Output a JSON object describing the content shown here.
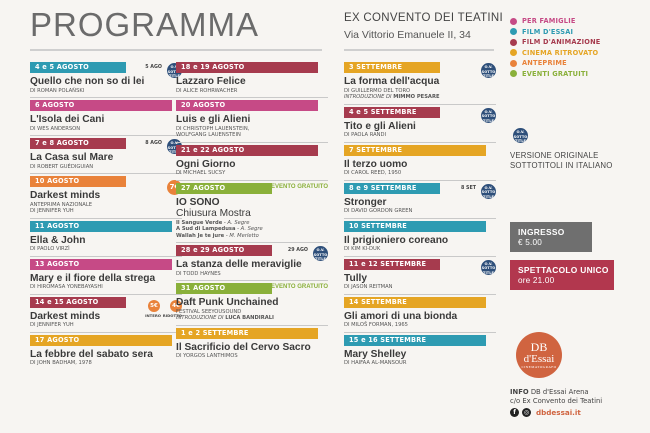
{
  "header": {
    "title": "PROGRAMMA",
    "venue_name": "EX CONVENTO DEI TEATINI",
    "venue_address": "Via Vittorio Emanuele II, 34"
  },
  "legend": [
    {
      "label": "PER FAMIGLIE",
      "color": "#c64a86"
    },
    {
      "label": "FILM D'ESSAI",
      "color": "#2e9bb2"
    },
    {
      "label": "FILM D'ANIMAZIONE",
      "color": "#a63b4e"
    },
    {
      "label": "CINEMA RITROVATO",
      "color": "#e5a524"
    },
    {
      "label": "ANTEPRIME",
      "color": "#e9823a"
    },
    {
      "label": "EVENTI GRATUITI",
      "color": "#8ab03a"
    }
  ],
  "badge": {
    "line1": "O.V.",
    "line2": "SOTTO",
    "line3": "TITLE"
  },
  "col1": [
    {
      "date": "4 e 5 AGOSTO",
      "color": "#2e9bb2",
      "title": "Quello che non so di lei",
      "sub": "DI ROMAN POLAŃSKI",
      "extra": "5 AGO",
      "vo": true
    },
    {
      "date": "6 AGOSTO",
      "color": "#c64a86",
      "title": "L'Isola dei Cani",
      "sub": "DI WES ANDERSON"
    },
    {
      "date": "7 e 8 AGOSTO",
      "color": "#a63b4e",
      "title": "La Casa sul Mare",
      "sub": "DI ROBERT GUÉDIGUIAN",
      "extra": "8 AGO",
      "vo": true
    },
    {
      "date": "10 AGOSTO",
      "color": "#e9823a",
      "title": "Darkest minds",
      "sub": "ANTEPRIMA NAZIONALE",
      "sub2": "DI JENNIFER YUH",
      "price": "7€"
    },
    {
      "date": "11 AGOSTO",
      "color": "#2e9bb2",
      "title": "Ella & John",
      "sub": "DI PAOLO VIRZÌ"
    },
    {
      "date": "13 AGOSTO",
      "color": "#c64a86",
      "title": "Mary e il fiore della strega",
      "sub": "DI HIROMASA YONEBAYASHI"
    },
    {
      "date": "14 e 15 AGOSTO",
      "color": "#a63b4e",
      "title": "Darkest minds",
      "sub": "DI JENNIFER YUH",
      "price1": "5€",
      "price2": "4€",
      "intero": "INTERO",
      "ridotto": "RIDOTTO"
    },
    {
      "date": "17 AGOSTO",
      "color": "#e5a524",
      "title": "La febbre del sabato sera",
      "sub": "DI JOHN BADHAM, 1978"
    }
  ],
  "col2": [
    {
      "date": "18 e 19 AGOSTO",
      "color": "#a63b4e",
      "title": "Lazzaro Felice",
      "sub": "DI ALICE ROHRWACHER"
    },
    {
      "date": "20 AGOSTO",
      "color": "#c64a86",
      "title": "Luis e gli Alieni",
      "sub": "DI CHRISTOPH LAUENSTEIN,",
      "sub2": "WOLFGANG LAUENSTEIN"
    },
    {
      "date": "21 e 22 AGOSTO",
      "color": "#a63b4e",
      "title": "Ogni Giorno",
      "sub": "DI MICHAEL SUCSY"
    },
    {
      "date": "27 AGOSTO",
      "color": "#8ab03a",
      "title": "IO SONO",
      "title2": "Chiusura Mostra",
      "grat": "EVENTO GRATUITO",
      "shorts": [
        {
          "t": "Il Sangue Verde",
          "a": "- A. Segre"
        },
        {
          "t": "A Sud di Lampedusa",
          "a": "- A. Segre"
        },
        {
          "t": "Wallah Je te jure",
          "a": "- M. Merletto"
        }
      ]
    },
    {
      "date": "28 e 29 AGOSTO",
      "color": "#a63b4e",
      "title": "La stanza delle meraviglie",
      "sub": "DI TODD HAYNES",
      "extra": "29 AGO",
      "vo": true
    },
    {
      "date": "31 AGOSTO",
      "color": "#8ab03a",
      "title": "Daft Punk Unchained",
      "sub": "FESTIVAL SEEYOUSOUND",
      "note": "INTRODUZIONE DI",
      "note_b": "LUCA BANDIRALI",
      "grat": "EVENTO GRATUITO"
    },
    {
      "date": "1 e 2 SETTEMBRE",
      "color": "#e5a524",
      "title": "Il Sacrificio del Cervo Sacro",
      "sub": "DI YORGOS LANTHIMOS"
    }
  ],
  "col3": [
    {
      "date": "3 SETTEMBRE",
      "color": "#e5a524",
      "title": "La forma dell'acqua",
      "sub": "DI GUILLERMO DEL TORO",
      "note": "INTRODUZIONE DI",
      "note_b": "MIMMO PESARE",
      "vo": true
    },
    {
      "date": "4 e 5 SETTEMBRE",
      "color": "#a63b4e",
      "title": "Tito e gli Alieni",
      "sub": "DI PAOLA RANDI",
      "vo": true
    },
    {
      "date": "7 SETTEMBRE",
      "color": "#e5a524",
      "title": "Il terzo uomo",
      "sub": "DI CAROL REED, 1950"
    },
    {
      "date": "8 e 9 SETTEMBRE",
      "color": "#2e9bb2",
      "title": "Stronger",
      "sub": "DI DAVID GORDON GREEN",
      "extra": "8 SET",
      "vo": true
    },
    {
      "date": "10 SETTEMBRE",
      "color": "#2e9bb2",
      "title": "Il prigioniero coreano",
      "sub": "DI KIM KI-DUK"
    },
    {
      "date": "11 e 12 SETTEMBRE",
      "color": "#a63b4e",
      "title": "Tully",
      "sub": "DI JASON REITMAN",
      "vo": true
    },
    {
      "date": "14 SETTEMBRE",
      "color": "#e5a524",
      "title": "Gli amori di una bionda",
      "sub": "DI MILOŠ FORMAN, 1965"
    },
    {
      "date": "15 e 16 SETTEMBRE",
      "color": "#2e9bb2",
      "title": "Mary Shelley",
      "sub": "DI HAIFAA AL-MANSOUR"
    }
  ],
  "side": {
    "vo_line1": "VERSIONE ORIGINALE",
    "vo_line2": "SOTTOTITOLI IN ITALIANO",
    "ingresso_label": "INGRESSO",
    "ingresso_price": "€ 5.00",
    "spettacolo_label": "SPETTACOLO UNICO",
    "spettacolo_time": "ore 21.00",
    "logo_line1": "DB",
    "logo_line2": "d'Essai",
    "logo_line3": "CINEMATOGRAFO",
    "info_label": "INFO",
    "info_text": "DB d'Essai Arena",
    "info_text2": "c/o Ex Convento dei Teatini",
    "facebook_glyph": "f",
    "instagram_glyph": "◎",
    "website": "dbdessai.it"
  }
}
